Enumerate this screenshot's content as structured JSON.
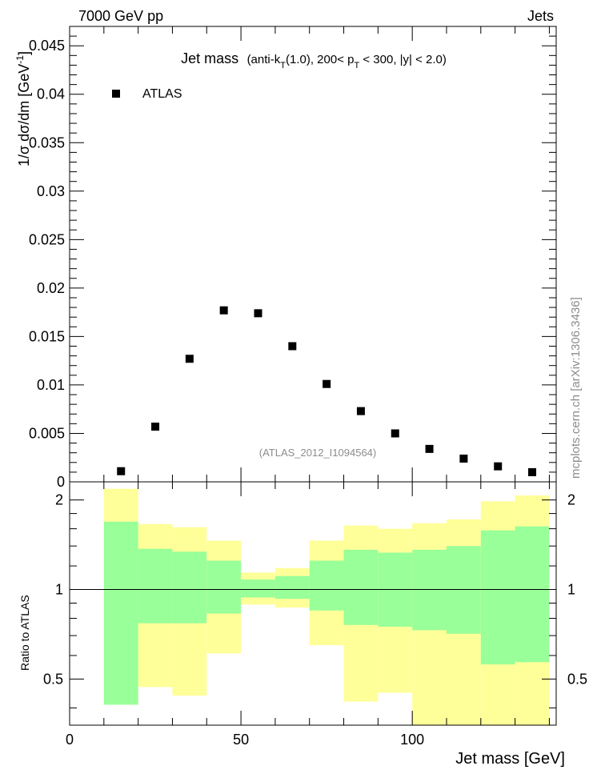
{
  "header": {
    "left": "7000 GeV pp",
    "right": "Jets"
  },
  "side_label": "mcplots.cern.ch [arXiv:1306.3436]",
  "chart_data": [
    {
      "type": "scatter",
      "title": "Jet mass",
      "subtitle_parts": {
        "p1": "(anti-k",
        "p1_sub": "T",
        "p2": "(1.0), 200< p",
        "p2_sub": "T",
        "p3": " < 300, |y| < 2.0)"
      },
      "ylabel_parts": {
        "main": "1/σ dσ/dm [GeV",
        "sup": "-1",
        "end": "]"
      },
      "ylim": [
        0,
        0.047
      ],
      "xlim": [
        0,
        142
      ],
      "log_y": false,
      "yticks": [
        "0",
        "0.005",
        "0.01",
        "0.015",
        "0.02",
        "0.025",
        "0.03",
        "0.035",
        "0.04",
        "0.045"
      ],
      "ytick_values": [
        0,
        0.005,
        0.01,
        0.015,
        0.02,
        0.025,
        0.03,
        0.035,
        0.04,
        0.045
      ],
      "legend": {
        "placement": "top-left",
        "entries": [
          "ATLAS"
        ]
      },
      "watermark": "(ATLAS_2012_I1094564)",
      "series": [
        {
          "name": "ATLAS",
          "color": "#000000",
          "x": [
            15,
            25,
            35,
            45,
            55,
            65,
            75,
            85,
            95,
            105,
            115,
            125,
            135
          ],
          "y": [
            0.0011,
            0.0057,
            0.0127,
            0.0177,
            0.0174,
            0.014,
            0.0101,
            0.0073,
            0.005,
            0.0034,
            0.0024,
            0.0016,
            0.001
          ]
        }
      ]
    },
    {
      "type": "area",
      "ylabel": "Ratio to ATLAS",
      "xlabel": "Jet mass [GeV]",
      "xlim": [
        0,
        142
      ],
      "ylim": [
        0.35,
        2.3
      ],
      "log_y": true,
      "xticks": [
        "0",
        "50",
        "100"
      ],
      "xtick_values": [
        0,
        50,
        100
      ],
      "yticks": [
        "0.5",
        "1",
        "2"
      ],
      "ytick_values": [
        0.5,
        1,
        2
      ],
      "reference_line": 1,
      "bands": {
        "bin_edges": [
          10,
          20,
          30,
          40,
          50,
          60,
          70,
          80,
          90,
          100,
          110,
          120,
          130,
          140
        ],
        "outer": {
          "color": "#ffff99",
          "low": [
            0.41,
            0.47,
            0.44,
            0.61,
            0.89,
            0.87,
            0.65,
            0.42,
            0.45,
            0.35,
            0.35,
            0.35,
            0.35
          ],
          "high": [
            2.18,
            1.66,
            1.62,
            1.46,
            1.14,
            1.18,
            1.46,
            1.64,
            1.6,
            1.67,
            1.72,
            1.98,
            2.07
          ]
        },
        "inner": {
          "color": "#99ff99",
          "low": [
            0.41,
            0.77,
            0.77,
            0.83,
            0.94,
            0.93,
            0.85,
            0.76,
            0.75,
            0.73,
            0.71,
            0.56,
            0.57
          ],
          "high": [
            1.69,
            1.37,
            1.34,
            1.25,
            1.08,
            1.11,
            1.25,
            1.36,
            1.33,
            1.36,
            1.4,
            1.58,
            1.63
          ]
        }
      }
    }
  ]
}
